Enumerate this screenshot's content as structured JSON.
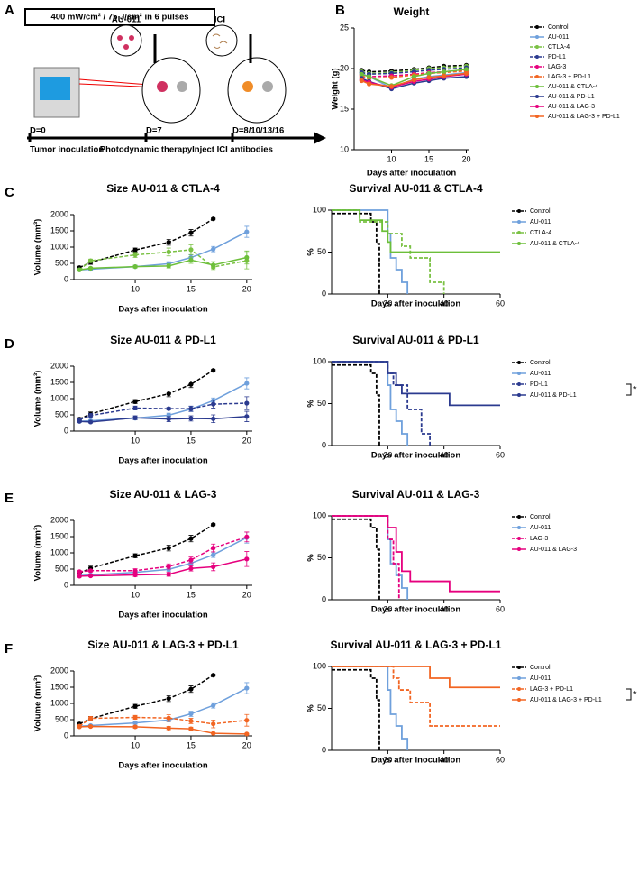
{
  "panels": [
    "A",
    "B",
    "C",
    "D",
    "E",
    "F"
  ],
  "diagram": {
    "dose_label": "400 mW/cm² / 75 J/cm² in 6 pulses",
    "agent_1": "AU-011",
    "agent_2": "ICI",
    "timeline": [
      {
        "day": "D=0",
        "event": "Tumor inoculation"
      },
      {
        "day": "D=7",
        "event": "Photodynamic therapy"
      },
      {
        "day": "D=8/10/13/16",
        "event": "Inject ICI antibodies"
      }
    ]
  },
  "chart_data": [
    {
      "type": "line",
      "title": "Weight",
      "xlabel": "Days after inoculation",
      "ylabel": "Weight (g)",
      "x": [
        6,
        7,
        10,
        13,
        15,
        17,
        20
      ],
      "xlim": [
        5,
        20.3
      ],
      "xticks": [
        10,
        15,
        20
      ],
      "ylim": [
        10,
        25
      ],
      "yticks": [
        10,
        15,
        20,
        25
      ],
      "legend": "right",
      "series": [
        {
          "name": "Control",
          "color": "#000000",
          "dash": true,
          "values": [
            19.8,
            19.6,
            19.7,
            19.9,
            20.1,
            20.3,
            20.4
          ]
        },
        {
          "name": "AU-011",
          "color": "#6fa0dc",
          "dash": false,
          "values": [
            19.4,
            19.0,
            17.6,
            18.7,
            19.0,
            19.2,
            19.5
          ]
        },
        {
          "name": "CTLA-4",
          "color": "#7ac143",
          "dash": true,
          "values": [
            19.6,
            19.4,
            19.5,
            19.8,
            20.0,
            20.1,
            20.3
          ]
        },
        {
          "name": "PD-L1",
          "color": "#2b3a8f",
          "dash": true,
          "values": [
            19.5,
            19.3,
            19.4,
            19.6,
            19.8,
            19.9,
            20.1
          ]
        },
        {
          "name": "LAG-3",
          "color": "#e6007e",
          "dash": true,
          "values": [
            19.2,
            19.0,
            19.1,
            19.3,
            19.5,
            19.6,
            19.8
          ]
        },
        {
          "name": "LAG-3 + PD-L1",
          "color": "#f26522",
          "dash": true,
          "values": [
            19.0,
            18.8,
            18.9,
            19.2,
            19.4,
            19.5,
            19.7
          ]
        },
        {
          "name": "AU-011 & CTLA-4",
          "color": "#6cbf3a",
          "dash": false,
          "values": [
            19.3,
            19.0,
            17.9,
            19.0,
            19.4,
            19.6,
            19.9
          ]
        },
        {
          "name": "AU-011 & PD-L1",
          "color": "#2b3a8f",
          "dash": false,
          "values": [
            18.8,
            18.4,
            17.5,
            18.2,
            18.5,
            18.8,
            19.0
          ]
        },
        {
          "name": "AU-011 & LAG-3",
          "color": "#e6007e",
          "dash": false,
          "values": [
            18.6,
            18.3,
            17.7,
            18.4,
            18.7,
            19.0,
            19.3
          ]
        },
        {
          "name": "AU-011 & LAG-3 + PD-L1",
          "color": "#f26522",
          "dash": false,
          "values": [
            18.5,
            18.1,
            17.8,
            18.6,
            18.9,
            19.1,
            19.4
          ]
        }
      ]
    },
    {
      "type": "line",
      "title": "Size AU-011 & CTLA-4",
      "xlabel": "Days after inoculation",
      "ylabel": "Volume (mm³)",
      "x": [
        5,
        6,
        10,
        13,
        15,
        17,
        20
      ],
      "xlim": [
        4.5,
        20.5
      ],
      "xticks": [
        10,
        15,
        20
      ],
      "ylim": [
        0,
        2000
      ],
      "yticks": [
        0,
        500,
        1000,
        1500,
        2000
      ],
      "series": [
        {
          "color": "#000000",
          "dash": true,
          "values": [
            370,
            530,
            910,
            1150,
            1440,
            1870,
            null
          ],
          "errors": [
            40,
            60,
            60,
            90,
            100,
            30,
            null
          ]
        },
        {
          "color": "#6fa0dc",
          "dash": false,
          "values": [
            300,
            320,
            400,
            490,
            680,
            940,
            1470
          ],
          "errors": [
            30,
            30,
            40,
            60,
            80,
            80,
            170
          ]
        },
        {
          "color": "#7ac143",
          "dash": true,
          "values": [
            300,
            580,
            760,
            850,
            920,
            390,
            580
          ],
          "errors": [
            30,
            50,
            80,
            120,
            150,
            80,
            250
          ]
        },
        {
          "color": "#6cbf3a",
          "dash": false,
          "values": [
            300,
            350,
            400,
            420,
            600,
            450,
            680
          ],
          "errors": [
            30,
            30,
            40,
            60,
            100,
            100,
            200
          ]
        }
      ]
    },
    {
      "type": "survival",
      "title": "Survival AU-011 & CTLA-4",
      "xlabel": "Days after inoculation",
      "ylabel": "%",
      "xlim": [
        0,
        60
      ],
      "xticks": [
        20,
        40,
        60
      ],
      "ylim": [
        0,
        100
      ],
      "yticks": [
        0,
        50,
        100
      ],
      "legend": "right",
      "series": [
        {
          "name": "Control",
          "color": "#000000",
          "dash": true,
          "x": [
            0,
            14,
            16,
            17
          ],
          "values": [
            96,
            86,
            60,
            0
          ]
        },
        {
          "name": "AU-011",
          "color": "#6fa0dc",
          "dash": false,
          "x": [
            0,
            20,
            21,
            23,
            25,
            27
          ],
          "values": [
            100,
            72,
            43,
            29,
            14,
            0
          ]
        },
        {
          "name": "CTLA-4",
          "color": "#7ac143",
          "dash": true,
          "x": [
            0,
            10,
            20,
            25,
            28,
            35,
            40
          ],
          "values": [
            100,
            86,
            72,
            57,
            43,
            14,
            0
          ]
        },
        {
          "name": "AU-011 & CTLA-4",
          "color": "#6cbf3a",
          "dash": false,
          "x": [
            0,
            10,
            18,
            20,
            21,
            60
          ],
          "values": [
            100,
            88,
            75,
            62,
            50,
            50
          ]
        }
      ]
    },
    {
      "type": "line",
      "title": "Size AU-011 & PD-L1",
      "xlabel": "Days after inoculation",
      "ylabel": "Volume (mm³)",
      "x": [
        5,
        6,
        10,
        13,
        15,
        17,
        20
      ],
      "xlim": [
        4.5,
        20.5
      ],
      "xticks": [
        10,
        15,
        20
      ],
      "ylim": [
        0,
        2000
      ],
      "yticks": [
        0,
        500,
        1000,
        1500,
        2000
      ],
      "series": [
        {
          "color": "#000000",
          "dash": true,
          "values": [
            370,
            530,
            910,
            1150,
            1440,
            1870,
            null
          ],
          "errors": [
            40,
            60,
            60,
            90,
            100,
            30,
            null
          ]
        },
        {
          "color": "#6fa0dc",
          "dash": false,
          "values": [
            300,
            320,
            400,
            490,
            680,
            940,
            1470
          ],
          "errors": [
            30,
            30,
            40,
            60,
            80,
            80,
            170
          ]
        },
        {
          "color": "#2b3a8f",
          "dash": true,
          "values": [
            350,
            480,
            710,
            690,
            690,
            830,
            860
          ],
          "errors": [
            30,
            60,
            60,
            40,
            80,
            120,
            200
          ]
        },
        {
          "color": "#2b3a8f",
          "dash": false,
          "values": [
            300,
            280,
            410,
            370,
            390,
            380,
            450
          ],
          "errors": [
            30,
            30,
            60,
            80,
            80,
            120,
            160
          ]
        }
      ]
    },
    {
      "type": "survival",
      "title": "Survival AU-011 & PD-L1",
      "xlabel": "Days after inoculation",
      "ylabel": "%",
      "xlim": [
        0,
        60
      ],
      "xticks": [
        20,
        40,
        60
      ],
      "ylim": [
        0,
        100
      ],
      "yticks": [
        0,
        50,
        100
      ],
      "legend": "right",
      "annotation": "*",
      "series": [
        {
          "name": "Control",
          "color": "#000000",
          "dash": true,
          "x": [
            0,
            14,
            16,
            17
          ],
          "values": [
            96,
            86,
            60,
            0
          ]
        },
        {
          "name": "AU-011",
          "color": "#6fa0dc",
          "dash": false,
          "x": [
            0,
            20,
            21,
            23,
            25,
            27
          ],
          "values": [
            100,
            72,
            43,
            29,
            14,
            0
          ]
        },
        {
          "name": "PD-L1",
          "color": "#2b3a8f",
          "dash": true,
          "x": [
            0,
            20,
            22,
            27,
            32,
            35
          ],
          "values": [
            100,
            86,
            72,
            43,
            14,
            0
          ]
        },
        {
          "name": "AU-011 & PD-L1",
          "color": "#2b3a8f",
          "dash": false,
          "x": [
            0,
            20,
            23,
            25,
            42,
            60
          ],
          "values": [
            100,
            86,
            72,
            62,
            48,
            48
          ]
        }
      ]
    },
    {
      "type": "line",
      "title": "Size AU-011 & LAG-3",
      "xlabel": "Days after inoculation",
      "ylabel": "Volume (mm³)",
      "x": [
        5,
        6,
        10,
        13,
        15,
        17,
        20
      ],
      "xlim": [
        4.5,
        20.5
      ],
      "xticks": [
        10,
        15,
        20
      ],
      "ylim": [
        0,
        2000
      ],
      "yticks": [
        0,
        500,
        1000,
        1500,
        2000
      ],
      "series": [
        {
          "color": "#000000",
          "dash": true,
          "values": [
            370,
            530,
            910,
            1150,
            1440,
            1870,
            null
          ],
          "errors": [
            40,
            60,
            60,
            90,
            100,
            30,
            null
          ]
        },
        {
          "color": "#6fa0dc",
          "dash": false,
          "values": [
            300,
            320,
            400,
            490,
            680,
            940,
            1470
          ],
          "errors": [
            30,
            30,
            40,
            60,
            80,
            80,
            170
          ]
        },
        {
          "color": "#e6007e",
          "dash": true,
          "values": [
            420,
            450,
            450,
            580,
            780,
            1150,
            1490
          ],
          "errors": [
            30,
            40,
            60,
            80,
            90,
            120,
            150
          ]
        },
        {
          "color": "#e6007e",
          "dash": false,
          "values": [
            280,
            290,
            320,
            340,
            520,
            570,
            810
          ],
          "errors": [
            30,
            30,
            50,
            60,
            80,
            120,
            230
          ]
        }
      ]
    },
    {
      "type": "survival",
      "title": "Survival AU-011 & LAG-3",
      "xlabel": "Days after inoculation",
      "ylabel": "%",
      "xlim": [
        0,
        60
      ],
      "xticks": [
        20,
        40,
        60
      ],
      "ylim": [
        0,
        100
      ],
      "yticks": [
        0,
        50,
        100
      ],
      "legend": "right",
      "series": [
        {
          "name": "Control",
          "color": "#000000",
          "dash": true,
          "x": [
            0,
            14,
            16,
            17
          ],
          "values": [
            96,
            86,
            60,
            0
          ]
        },
        {
          "name": "AU-011",
          "color": "#6fa0dc",
          "dash": false,
          "x": [
            0,
            20,
            21,
            23,
            25,
            27
          ],
          "values": [
            100,
            72,
            43,
            29,
            14,
            0
          ]
        },
        {
          "name": "LAG-3",
          "color": "#e6007e",
          "dash": true,
          "x": [
            0,
            20,
            22,
            24
          ],
          "values": [
            100,
            72,
            43,
            0
          ]
        },
        {
          "name": "AU-011 & LAG-3",
          "color": "#e6007e",
          "dash": false,
          "x": [
            0,
            20,
            23,
            25,
            28,
            42,
            60
          ],
          "values": [
            100,
            86,
            57,
            34,
            22,
            10,
            10
          ]
        }
      ]
    },
    {
      "type": "line",
      "title": "Size AU-011 & LAG-3 + PD-L1",
      "xlabel": "Days after inoculation",
      "ylabel": "Volume (mm³)",
      "x": [
        5,
        6,
        10,
        13,
        15,
        17,
        20
      ],
      "xlim": [
        4.5,
        20.5
      ],
      "xticks": [
        10,
        15,
        20
      ],
      "ylim": [
        0,
        2000
      ],
      "yticks": [
        0,
        500,
        1000,
        1500,
        2000
      ],
      "series": [
        {
          "color": "#000000",
          "dash": true,
          "values": [
            370,
            530,
            910,
            1150,
            1440,
            1870,
            null
          ],
          "errors": [
            40,
            60,
            60,
            90,
            100,
            30,
            null
          ]
        },
        {
          "color": "#6fa0dc",
          "dash": false,
          "values": [
            300,
            320,
            400,
            490,
            680,
            940,
            1470
          ],
          "errors": [
            30,
            30,
            40,
            60,
            80,
            80,
            170
          ]
        },
        {
          "color": "#f26522",
          "dash": true,
          "values": [
            300,
            540,
            570,
            550,
            460,
            370,
            480
          ],
          "errors": [
            30,
            60,
            60,
            100,
            80,
            120,
            180
          ]
        },
        {
          "color": "#f26522",
          "dash": false,
          "values": [
            280,
            290,
            280,
            240,
            220,
            80,
            60
          ],
          "errors": [
            20,
            30,
            40,
            50,
            50,
            20,
            20
          ]
        }
      ]
    },
    {
      "type": "survival",
      "title": "Survival AU-011 & LAG-3 + PD-L1",
      "xlabel": "Days after inoculation",
      "ylabel": "%",
      "xlim": [
        0,
        60
      ],
      "xticks": [
        20,
        40,
        60
      ],
      "ylim": [
        0,
        100
      ],
      "yticks": [
        0,
        50,
        100
      ],
      "legend": "right",
      "annotation": "*",
      "series": [
        {
          "name": "Control",
          "color": "#000000",
          "dash": true,
          "x": [
            0,
            14,
            16,
            17
          ],
          "values": [
            96,
            86,
            60,
            0
          ]
        },
        {
          "name": "AU-011",
          "color": "#6fa0dc",
          "dash": false,
          "x": [
            0,
            20,
            21,
            23,
            25,
            27
          ],
          "values": [
            100,
            72,
            43,
            29,
            14,
            0
          ]
        },
        {
          "name": "LAG-3 + PD-L1",
          "color": "#f26522",
          "dash": true,
          "x": [
            0,
            22,
            24,
            28,
            35,
            60
          ],
          "values": [
            100,
            86,
            72,
            57,
            29,
            29
          ]
        },
        {
          "name": "AU-011 & LAG-3 + PD-L1",
          "color": "#f26522",
          "dash": false,
          "x": [
            0,
            35,
            42,
            60
          ],
          "values": [
            100,
            86,
            75,
            75
          ]
        }
      ]
    }
  ]
}
